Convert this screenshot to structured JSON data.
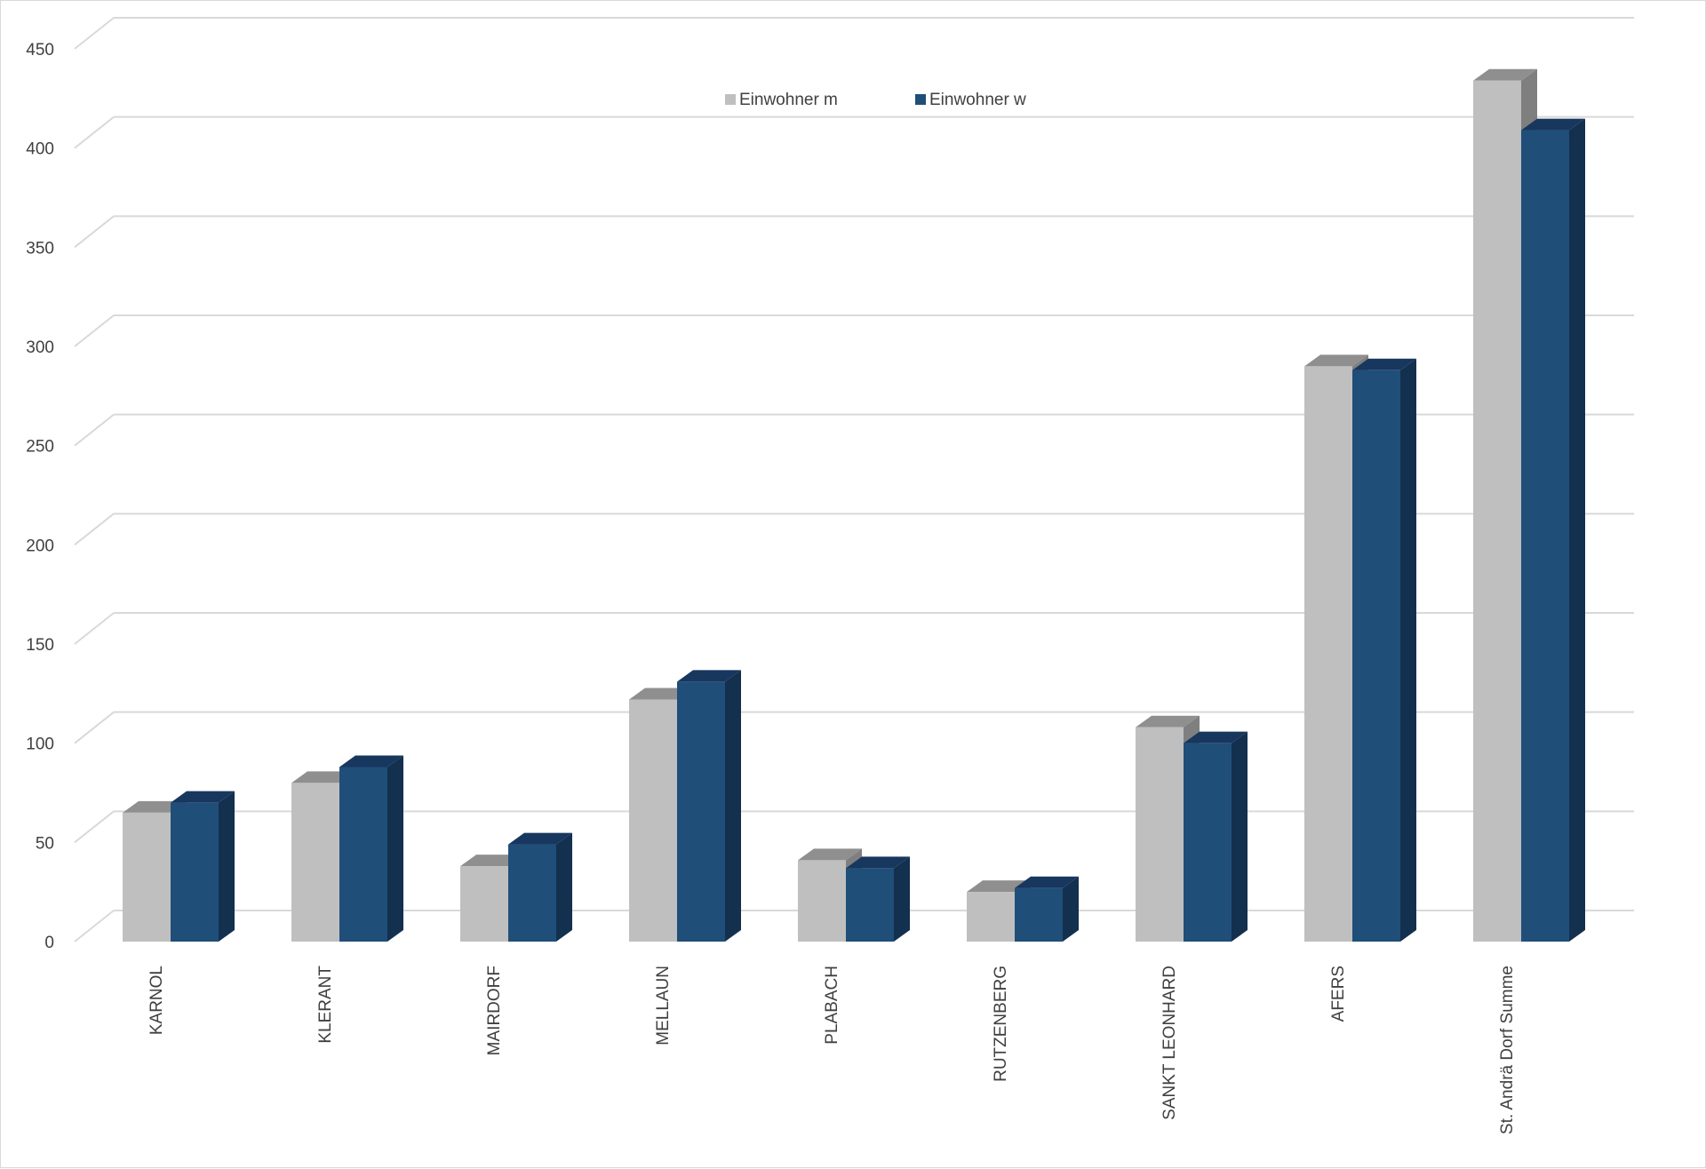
{
  "chart_data": {
    "type": "bar",
    "style": "3d-clustered-column",
    "categories": [
      "KARNOL",
      "KLERANT",
      "MAIRDORF",
      "MELLAUN",
      "PLABACH",
      "RUTZENBERG",
      "SANKT LEONHARD",
      "AFERS",
      "St. Andrä Dorf Summe"
    ],
    "series": [
      {
        "name": "Einwohner m",
        "color": "#bfbfbf",
        "values": [
          65,
          80,
          38,
          122,
          41,
          25,
          108,
          290,
          434
        ]
      },
      {
        "name": "Einwohner w",
        "color": "#1f4e79",
        "values": [
          70,
          88,
          49,
          131,
          37,
          27,
          100,
          288,
          409
        ]
      }
    ],
    "ylim": [
      0,
      450
    ],
    "yticks": [
      0,
      50,
      100,
      150,
      200,
      250,
      300,
      350,
      400,
      450
    ],
    "grid": true,
    "legend_position": "top-center",
    "title": "",
    "xlabel": "",
    "ylabel": ""
  }
}
